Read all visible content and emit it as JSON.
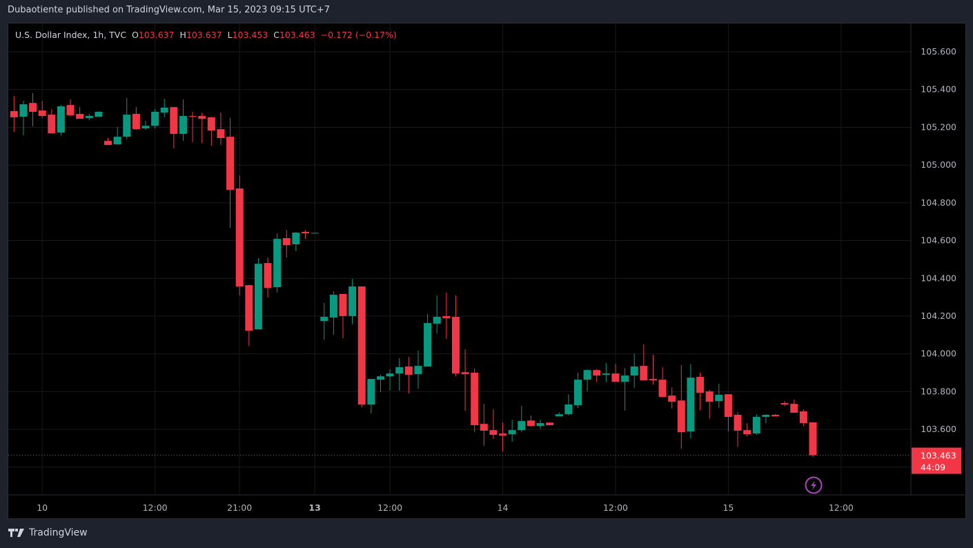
{
  "published": "Dubaotiente published on TradingView.com, Mar 15, 2023 09:15 UTC+7",
  "legend": {
    "symbol": "U.S. Dollar Index, 1h, TVC",
    "o_label": "O",
    "o": "103.637",
    "h_label": "H",
    "h": "103.637",
    "l_label": "L",
    "l": "103.453",
    "c_label": "C",
    "c": "103.463",
    "change": "−0.172 (−0.17%)"
  },
  "last_price": {
    "value": "103.463",
    "countdown": "44:09"
  },
  "logo": "TradingView",
  "colors": {
    "up": "#089981",
    "down": "#f23645",
    "grid": "#1a1a1a",
    "axis_text": "#b2b5be",
    "alert": "#ab47bc"
  },
  "chart_data": {
    "type": "candlestick",
    "title": "U.S. Dollar Index, 1h, TVC",
    "ylim": [
      103.253,
      105.75
    ],
    "y_ticks": [
      "105.600",
      "105.400",
      "105.200",
      "105.000",
      "104.800",
      "104.600",
      "104.400",
      "104.200",
      "104.000",
      "103.800",
      "103.600"
    ],
    "x_ticks": [
      {
        "label": "10",
        "index": 3,
        "bold": false
      },
      {
        "label": "12:00",
        "index": 15,
        "bold": false
      },
      {
        "label": "21:00",
        "index": 24,
        "bold": false
      },
      {
        "label": "13",
        "index": 32,
        "bold": true
      },
      {
        "label": "12:00",
        "index": 40,
        "bold": false
      },
      {
        "label": "14",
        "index": 52,
        "bold": false
      },
      {
        "label": "12:00",
        "index": 64,
        "bold": false
      },
      {
        "label": "15",
        "index": 76,
        "bold": false
      },
      {
        "label": "12:00",
        "index": 88,
        "bold": false
      }
    ],
    "visible_slots": 96,
    "ohlc": [
      [
        105.286,
        105.366,
        105.176,
        105.253
      ],
      [
        105.256,
        105.34,
        105.157,
        105.322
      ],
      [
        105.329,
        105.381,
        105.205,
        105.282
      ],
      [
        105.289,
        105.34,
        105.249,
        105.26
      ],
      [
        105.267,
        105.296,
        105.168,
        105.168
      ],
      [
        105.172,
        105.318,
        105.157,
        105.311
      ],
      [
        105.318,
        105.348,
        105.256,
        105.264
      ],
      [
        105.271,
        105.307,
        105.245,
        105.245
      ],
      [
        105.249,
        105.271,
        105.238,
        105.26
      ],
      [
        105.256,
        105.285,
        105.256,
        105.282
      ],
      [
        105.128,
        105.143,
        105.106,
        105.106
      ],
      [
        105.11,
        105.201,
        105.11,
        105.15
      ],
      [
        105.15,
        105.355,
        105.136,
        105.267
      ],
      [
        105.271,
        105.307,
        105.187,
        105.19
      ],
      [
        105.194,
        105.234,
        105.187,
        105.208
      ],
      [
        105.208,
        105.296,
        105.194,
        105.282
      ],
      [
        105.278,
        105.351,
        105.253,
        105.304
      ],
      [
        105.307,
        105.307,
        105.088,
        105.165
      ],
      [
        105.165,
        105.348,
        105.128,
        105.26
      ],
      [
        105.26,
        105.282,
        105.121,
        105.256
      ],
      [
        105.26,
        105.278,
        105.117,
        105.245
      ],
      [
        105.253,
        105.256,
        105.103,
        105.183
      ],
      [
        105.19,
        105.278,
        105.106,
        105.143
      ],
      [
        105.15,
        105.249,
        104.667,
        104.869
      ],
      [
        104.876,
        104.945,
        104.309,
        104.357
      ],
      [
        104.364,
        104.364,
        104.042,
        104.123
      ],
      [
        104.13,
        104.507,
        104.13,
        104.477
      ],
      [
        104.481,
        104.51,
        104.298,
        104.349
      ],
      [
        104.353,
        104.638,
        104.324,
        104.609
      ],
      [
        104.613,
        104.656,
        104.51,
        104.576
      ],
      [
        104.58,
        104.646,
        104.543,
        104.642
      ],
      [
        104.646,
        104.656,
        104.609,
        104.638
      ],
      [
        104.64,
        104.641,
        104.64,
        104.641
      ],
      [
        104.174,
        104.269,
        104.075,
        104.196
      ],
      [
        104.192,
        104.331,
        104.101,
        104.313
      ],
      [
        104.317,
        104.317,
        104.083,
        104.2
      ],
      [
        104.2,
        104.397,
        104.156,
        104.357
      ],
      [
        104.357,
        104.357,
        103.717,
        103.731
      ],
      [
        103.731,
        103.867,
        103.684,
        103.867
      ],
      [
        103.863,
        103.889,
        103.797,
        103.881
      ],
      [
        103.881,
        103.918,
        103.805,
        103.896
      ],
      [
        103.896,
        103.977,
        103.805,
        103.929
      ],
      [
        103.933,
        103.984,
        103.79,
        103.889
      ],
      [
        103.892,
        104.017,
        103.816,
        103.936
      ],
      [
        103.933,
        104.211,
        103.933,
        104.163
      ],
      [
        104.16,
        104.309,
        104.108,
        104.196
      ],
      [
        104.2,
        104.324,
        104.079,
        104.189
      ],
      [
        104.196,
        104.309,
        103.881,
        103.896
      ],
      [
        103.903,
        104.024,
        103.699,
        103.892
      ],
      [
        103.9,
        103.922,
        103.585,
        103.622
      ],
      [
        103.629,
        103.735,
        103.512,
        103.593
      ],
      [
        103.596,
        103.706,
        103.549,
        103.571
      ],
      [
        103.578,
        103.636,
        103.483,
        103.567
      ],
      [
        103.574,
        103.651,
        103.534,
        103.596
      ],
      [
        103.596,
        103.724,
        103.585,
        103.644
      ],
      [
        103.647,
        103.673,
        103.614,
        103.618
      ],
      [
        103.618,
        103.651,
        103.603,
        103.633
      ],
      [
        103.636,
        103.636,
        103.622,
        103.622
      ],
      [
        103.669,
        103.691,
        103.669,
        103.68
      ],
      [
        103.68,
        103.786,
        103.673,
        103.732
      ],
      [
        103.728,
        103.9,
        103.713,
        103.863
      ],
      [
        103.863,
        103.918,
        103.801,
        103.914
      ],
      [
        103.914,
        103.918,
        103.852,
        103.885
      ],
      [
        103.889,
        103.951,
        103.852,
        103.896
      ],
      [
        103.896,
        103.947,
        103.852,
        103.852
      ],
      [
        103.852,
        103.925,
        103.699,
        103.885
      ],
      [
        103.885,
        104.002,
        103.819,
        103.933
      ],
      [
        103.936,
        104.05,
        103.86,
        103.86
      ],
      [
        103.867,
        103.995,
        103.838,
        103.86
      ],
      [
        103.863,
        103.929,
        103.768,
        103.772
      ],
      [
        103.779,
        103.823,
        103.71,
        103.746
      ],
      [
        103.753,
        103.94,
        103.497,
        103.585
      ],
      [
        103.589,
        103.947,
        103.552,
        103.874
      ],
      [
        103.878,
        103.9,
        103.702,
        103.794
      ],
      [
        103.801,
        103.808,
        103.658,
        103.746
      ],
      [
        103.75,
        103.841,
        103.713,
        103.783
      ],
      [
        103.786,
        103.786,
        103.589,
        103.666
      ],
      [
        103.677,
        103.691,
        103.508,
        103.593
      ],
      [
        103.596,
        103.633,
        103.563,
        103.574
      ],
      [
        103.578,
        103.68,
        103.571,
        103.666
      ],
      [
        103.666,
        103.68,
        103.633,
        103.677
      ],
      [
        103.677,
        103.68,
        103.669,
        103.669
      ],
      [
        103.739,
        103.75,
        103.724,
        103.731
      ],
      [
        103.735,
        103.757,
        103.688,
        103.688
      ],
      [
        103.695,
        103.706,
        103.618,
        103.633
      ],
      [
        103.637,
        103.637,
        103.453,
        103.463
      ]
    ]
  }
}
